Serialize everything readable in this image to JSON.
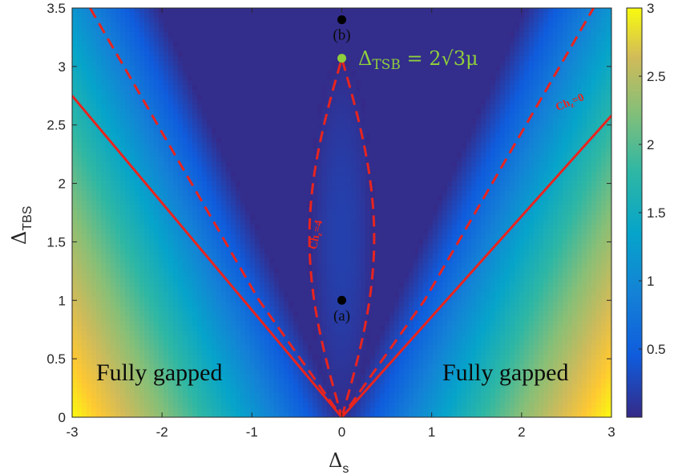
{
  "chart_data": {
    "type": "heatmap",
    "xlabel": "Δ",
    "xlabel_sub": "s",
    "ylabel": "Δ",
    "ylabel_sub": "TBS",
    "xlim": [
      -3,
      3
    ],
    "ylim": [
      0,
      3.5
    ],
    "x_ticks": [
      "-3",
      "-2",
      "-1",
      "0",
      "1",
      "2",
      "3"
    ],
    "y_ticks": [
      "0",
      "0.5",
      "1",
      "1.5",
      "2",
      "2.5",
      "3",
      "3.5"
    ],
    "colorbar": {
      "range": [
        0,
        3
      ],
      "ticks": [
        "0.5",
        "1",
        "1.5",
        "2",
        "2.5",
        "3"
      ],
      "colormap": "parula"
    },
    "field": "gap = max(0, |Δs| − Δ_TBS/√3)",
    "lines": [
      {
        "style": "solid",
        "color": "#e8241f",
        "points": [
          [
            -3,
            2.75
          ],
          [
            0,
            0
          ],
          [
            3,
            2.58
          ]
        ]
      },
      {
        "style": "dashed",
        "color": "#e8241f",
        "points": [
          [
            -2.8,
            3.5
          ],
          [
            -0.92,
            1.0
          ],
          [
            0,
            0
          ],
          [
            0.92,
            1.0
          ],
          [
            2.8,
            3.5
          ]
        ]
      },
      {
        "style": "dashed-closed",
        "color": "#e8241f",
        "shape": "lens",
        "x_halfwidth": 0.36,
        "y_range": [
          0,
          3.07
        ]
      }
    ],
    "points": [
      {
        "label": "(a)",
        "x": 0,
        "y": 1.0,
        "color": "#000000"
      },
      {
        "label": "(b)",
        "x": 0,
        "y": 3.4,
        "color": "#000000"
      },
      {
        "label": "",
        "x": 0,
        "y": 3.07,
        "color": "#8fce3c"
      }
    ],
    "annotations": {
      "equation": "Δ_TSB = 2√3μ",
      "region_left": "Fully gapped",
      "region_right": "Fully gapped",
      "ch_inner": "Ch_z=4",
      "ch_outer": "Ch_z=0"
    }
  },
  "text": {
    "eq_main": "Δ",
    "eq_sub": "TSB",
    "eq_rest": " = 2√3μ",
    "ch_inner_base": "Ch",
    "ch_inner_sub": "z",
    "ch_inner_val": "=4",
    "ch_outer_base": "Ch",
    "ch_outer_sub": "z",
    "ch_outer_val": "=0"
  }
}
